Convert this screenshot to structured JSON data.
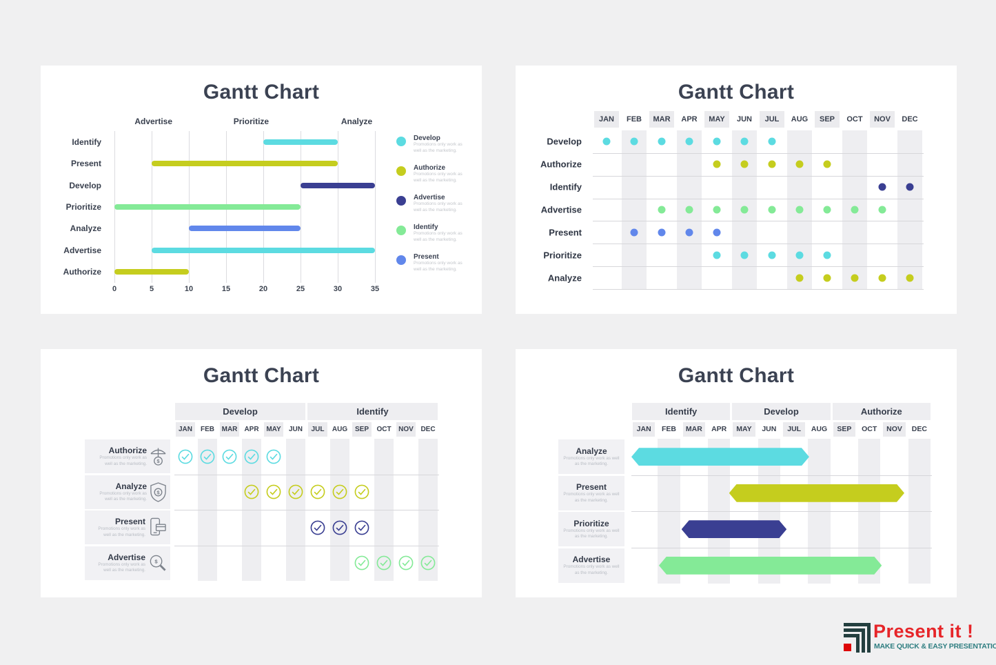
{
  "page": {
    "background": "#f0f0f1"
  },
  "palette": {
    "cyan": "#5cdbe1",
    "olive": "#c5cd1e",
    "navy": "#3a3f92",
    "green": "#84ea97",
    "blue": "#6187eb"
  },
  "months": [
    "JAN",
    "FEB",
    "MAR",
    "APR",
    "MAY",
    "JUN",
    "JUL",
    "AUG",
    "SEP",
    "OCT",
    "NOV",
    "DEC"
  ],
  "chart_data": [
    {
      "type": "bar",
      "title": "Gantt Chart",
      "column_headers": [
        "Advertise",
        "Prioritize",
        "Analyze"
      ],
      "x_ticks": [
        0,
        5,
        10,
        15,
        20,
        25,
        30,
        35
      ],
      "xlim": [
        0,
        35
      ],
      "series": [
        {
          "name": "Identify",
          "start": 20,
          "end": 30,
          "color": "cyan"
        },
        {
          "name": "Present",
          "start": 5,
          "end": 30,
          "color": "olive"
        },
        {
          "name": "Develop",
          "start": 25,
          "end": 35,
          "color": "navy"
        },
        {
          "name": "Prioritize",
          "start": 0,
          "end": 25,
          "color": "green"
        },
        {
          "name": "Analyze",
          "start": 10,
          "end": 25,
          "color": "blue"
        },
        {
          "name": "Advertise",
          "start": 5,
          "end": 35,
          "color": "cyan"
        },
        {
          "name": "Authorize",
          "start": 0,
          "end": 10,
          "color": "olive"
        }
      ],
      "legend": [
        {
          "name": "Develop",
          "color": "cyan"
        },
        {
          "name": "Authorize",
          "color": "olive"
        },
        {
          "name": "Advertise",
          "color": "navy"
        },
        {
          "name": "Identify",
          "color": "green"
        },
        {
          "name": "Present",
          "color": "blue"
        }
      ],
      "legend_note": "Promotions only work as well as the marketing."
    },
    {
      "type": "table",
      "title": "Gantt Chart",
      "marker": "dot",
      "columns": [
        "JAN",
        "FEB",
        "MAR",
        "APR",
        "MAY",
        "JUN",
        "JUL",
        "AUG",
        "SEP",
        "OCT",
        "NOV",
        "DEC"
      ],
      "rows": [
        {
          "name": "Develop",
          "color": "cyan",
          "active_months": [
            "JAN",
            "FEB",
            "MAR",
            "APR",
            "MAY",
            "JUN",
            "JUL"
          ]
        },
        {
          "name": "Authorize",
          "color": "olive",
          "active_months": [
            "MAY",
            "JUN",
            "JUL",
            "AUG",
            "SEP"
          ]
        },
        {
          "name": "Identify",
          "color": "navy",
          "active_months": [
            "NOV",
            "DEC"
          ]
        },
        {
          "name": "Advertise",
          "color": "green",
          "active_months": [
            "MAR",
            "APR",
            "MAY",
            "JUN",
            "JUL",
            "AUG",
            "SEP",
            "OCT",
            "NOV"
          ]
        },
        {
          "name": "Present",
          "color": "blue",
          "active_months": [
            "FEB",
            "MAR",
            "APR",
            "MAY"
          ]
        },
        {
          "name": "Prioritize",
          "color": "cyan",
          "active_months": [
            "MAY",
            "JUN",
            "JUL",
            "AUG",
            "SEP"
          ]
        },
        {
          "name": "Analyze",
          "color": "olive",
          "active_months": [
            "AUG",
            "SEP",
            "OCT",
            "NOV",
            "DEC"
          ]
        }
      ]
    },
    {
      "type": "table",
      "title": "Gantt Chart",
      "marker": "check",
      "groups": [
        {
          "name": "Develop",
          "span": 6
        },
        {
          "name": "Identify",
          "span": 6
        }
      ],
      "columns": [
        "JAN",
        "FEB",
        "MAR",
        "APR",
        "MAY",
        "JUN",
        "JUL",
        "AUG",
        "SEP",
        "OCT",
        "NOV",
        "DEC"
      ],
      "row_note": "Promotions only work as well as the marketing.",
      "rows": [
        {
          "name": "Authorize",
          "icon": "umbrella-dollar-icon",
          "color": "cyan",
          "active_months": [
            "JAN",
            "FEB",
            "MAR",
            "APR",
            "MAY"
          ]
        },
        {
          "name": "Analyze",
          "icon": "shield-dollar-icon",
          "color": "olive",
          "active_months": [
            "APR",
            "MAY",
            "JUN",
            "JUL",
            "AUG",
            "SEP"
          ]
        },
        {
          "name": "Present",
          "icon": "phone-card-icon",
          "color": "navy",
          "active_months": [
            "JUL",
            "AUG",
            "SEP"
          ]
        },
        {
          "name": "Advertise",
          "icon": "magnifier-dollar-icon",
          "color": "green",
          "active_months": [
            "SEP",
            "OCT",
            "NOV",
            "DEC"
          ]
        }
      ]
    },
    {
      "type": "bar",
      "title": "Gantt Chart",
      "groups": [
        {
          "name": "Identify",
          "span": 4
        },
        {
          "name": "Develop",
          "span": 4
        },
        {
          "name": "Authorize",
          "span": 4
        }
      ],
      "columns": [
        "JAN",
        "FEB",
        "MAR",
        "APR",
        "MAY",
        "JUN",
        "JUL",
        "AUG",
        "SEP",
        "OCT",
        "NOV",
        "DEC"
      ],
      "row_note": "Promotions only work as well as the marketing.",
      "series": [
        {
          "name": "Analyze",
          "color": "cyan",
          "start_month": 0,
          "end_month": 7.1
        },
        {
          "name": "Present",
          "color": "olive",
          "start_month": 3.9,
          "end_month": 10.9
        },
        {
          "name": "Prioritize",
          "color": "navy",
          "start_month": 2,
          "end_month": 6.2
        },
        {
          "name": "Advertise",
          "color": "green",
          "start_month": 1.1,
          "end_month": 10.0
        }
      ]
    }
  ],
  "logo": {
    "title": "Present it !",
    "tagline": "MAKE QUICK & EASY PRESENTATIONS",
    "title_color": "#e62529",
    "tagline_color": "#2f7e81",
    "mark_color": "#233f3f",
    "mark_accent": "#dd0607"
  }
}
